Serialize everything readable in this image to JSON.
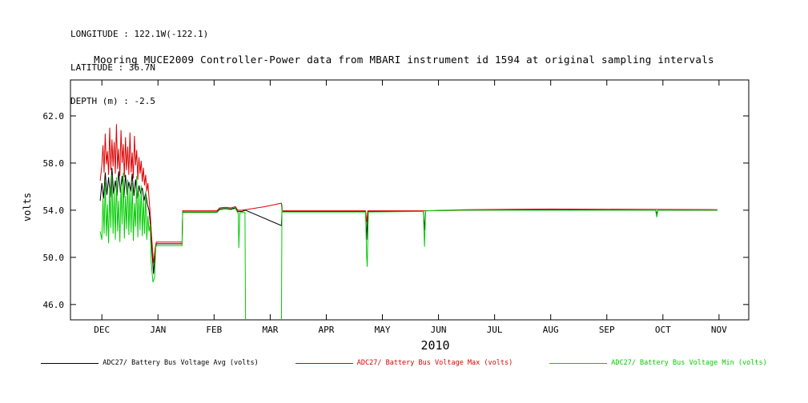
{
  "header": {
    "longitude": "LONGITUDE : 122.1W(-122.1)",
    "latitude": "LATITUDE : 36.7N",
    "depth": "DEPTH (m) : -2.5"
  },
  "chart_data": {
    "type": "line",
    "title": "Mooring MUCE2009 Controller-Power data from MBARI instrument id 1594 at original sampling intervals",
    "xlabel": "2010",
    "ylabel": "volts",
    "x_unit": "months, 0 = DEC 2009",
    "xlim": [
      -0.56,
      11.53
    ],
    "ylim": [
      44.7,
      65.05
    ],
    "grid": false,
    "legend_position": "bottom",
    "x_ticks": {
      "values": [
        0,
        1,
        2,
        3,
        4,
        5,
        6,
        7,
        8,
        9,
        10,
        11
      ],
      "labels": [
        "DEC",
        "JAN",
        "FEB",
        "MAR",
        "APR",
        "MAY",
        "JUN",
        "JUL",
        "AUG",
        "SEP",
        "OCT",
        "NOV"
      ]
    },
    "y_ticks": {
      "values": [
        46,
        50,
        54,
        58,
        62
      ],
      "labels": [
        "46.0",
        "50.0",
        "54.0",
        "58.0",
        "62.0"
      ]
    },
    "series": [
      {
        "name": "ADC27/ Battery Bus Voltage Avg (volts)",
        "color": "#000000",
        "points": [
          [
            -0.03,
            54.8
          ],
          [
            0.0,
            56.3
          ],
          [
            0.03,
            55.0
          ],
          [
            0.06,
            57.2
          ],
          [
            0.09,
            55.3
          ],
          [
            0.12,
            56.8
          ],
          [
            0.15,
            55.1
          ],
          [
            0.18,
            57.6
          ],
          [
            0.21,
            55.4
          ],
          [
            0.24,
            56.5
          ],
          [
            0.27,
            55.2
          ],
          [
            0.3,
            57.3
          ],
          [
            0.33,
            55.5
          ],
          [
            0.36,
            56.9
          ],
          [
            0.39,
            55.0
          ],
          [
            0.42,
            57.0
          ],
          [
            0.45,
            55.3
          ],
          [
            0.48,
            56.4
          ],
          [
            0.51,
            55.6
          ],
          [
            0.54,
            57.1
          ],
          [
            0.57,
            55.2
          ],
          [
            0.6,
            56.6
          ],
          [
            0.63,
            55.0
          ],
          [
            0.66,
            56.1
          ],
          [
            0.69,
            55.4
          ],
          [
            0.72,
            55.9
          ],
          [
            0.75,
            54.8
          ],
          [
            0.78,
            55.5
          ],
          [
            0.81,
            54.5
          ],
          [
            0.84,
            54.0
          ],
          [
            0.86,
            53.0
          ],
          [
            0.89,
            50.8
          ],
          [
            0.92,
            48.6
          ],
          [
            0.95,
            50.5
          ],
          [
            0.97,
            51.15
          ],
          [
            1.43,
            51.15
          ],
          [
            1.44,
            53.85
          ],
          [
            2.05,
            53.85
          ],
          [
            2.1,
            54.1
          ],
          [
            2.2,
            54.15
          ],
          [
            2.3,
            54.1
          ],
          [
            2.38,
            54.2
          ],
          [
            2.42,
            53.9
          ],
          [
            2.5,
            53.9
          ],
          [
            2.56,
            54.0
          ],
          [
            3.2,
            52.7
          ],
          [
            3.21,
            53.9
          ],
          [
            4.7,
            53.9
          ],
          [
            4.72,
            51.5
          ],
          [
            4.74,
            53.9
          ],
          [
            5.73,
            53.9
          ],
          [
            5.75,
            52.3
          ],
          [
            5.77,
            53.95
          ],
          [
            6.5,
            54.0
          ],
          [
            8.0,
            54.05
          ],
          [
            9.87,
            54.0
          ],
          [
            9.89,
            53.7
          ],
          [
            9.91,
            54.0
          ],
          [
            10.97,
            54.0
          ]
        ]
      },
      {
        "name": "ADC27/ Battery Bus Voltage Max (volts)",
        "color": "#dd0000",
        "points": [
          [
            -0.03,
            56.5
          ],
          [
            0.0,
            57.8
          ],
          [
            0.02,
            59.5
          ],
          [
            0.04,
            57.2
          ],
          [
            0.06,
            60.5
          ],
          [
            0.08,
            57.9
          ],
          [
            0.1,
            59.0
          ],
          [
            0.12,
            57.0
          ],
          [
            0.14,
            61.0
          ],
          [
            0.16,
            57.4
          ],
          [
            0.18,
            60.0
          ],
          [
            0.2,
            57.7
          ],
          [
            0.22,
            59.8
          ],
          [
            0.24,
            57.1
          ],
          [
            0.26,
            61.3
          ],
          [
            0.28,
            57.5
          ],
          [
            0.3,
            59.2
          ],
          [
            0.32,
            56.9
          ],
          [
            0.34,
            60.8
          ],
          [
            0.36,
            58.0
          ],
          [
            0.38,
            59.6
          ],
          [
            0.4,
            56.8
          ],
          [
            0.42,
            60.2
          ],
          [
            0.44,
            57.4
          ],
          [
            0.46,
            59.4
          ],
          [
            0.48,
            57.0
          ],
          [
            0.5,
            60.6
          ],
          [
            0.52,
            57.2
          ],
          [
            0.54,
            58.9
          ],
          [
            0.56,
            56.7
          ],
          [
            0.58,
            60.3
          ],
          [
            0.6,
            57.8
          ],
          [
            0.62,
            59.1
          ],
          [
            0.64,
            56.6
          ],
          [
            0.66,
            58.5
          ],
          [
            0.68,
            57.1
          ],
          [
            0.7,
            58.2
          ],
          [
            0.72,
            56.4
          ],
          [
            0.74,
            57.6
          ],
          [
            0.76,
            56.1
          ],
          [
            0.78,
            57.0
          ],
          [
            0.8,
            55.6
          ],
          [
            0.82,
            56.3
          ],
          [
            0.84,
            55.0
          ],
          [
            0.86,
            53.8
          ],
          [
            0.89,
            51.5
          ],
          [
            0.92,
            49.5
          ],
          [
            0.95,
            50.8
          ],
          [
            0.97,
            51.3
          ],
          [
            1.43,
            51.3
          ],
          [
            1.44,
            53.95
          ],
          [
            2.05,
            53.95
          ],
          [
            2.1,
            54.2
          ],
          [
            2.2,
            54.25
          ],
          [
            2.3,
            54.2
          ],
          [
            2.38,
            54.3
          ],
          [
            2.42,
            54.0
          ],
          [
            2.5,
            54.0
          ],
          [
            2.56,
            54.05
          ],
          [
            2.9,
            54.3
          ],
          [
            3.2,
            54.6
          ],
          [
            3.21,
            53.95
          ],
          [
            4.7,
            53.95
          ],
          [
            4.72,
            53.0
          ],
          [
            4.74,
            53.95
          ],
          [
            5.73,
            53.95
          ],
          [
            5.77,
            53.95
          ],
          [
            6.5,
            54.05
          ],
          [
            8.0,
            54.1
          ],
          [
            10.97,
            54.05
          ]
        ]
      },
      {
        "name": "ADC27/ Battery Bus Voltage Min (volts)",
        "color": "#00cc00",
        "points": [
          [
            -0.03,
            52.2
          ],
          [
            0.0,
            51.5
          ],
          [
            0.02,
            55.0
          ],
          [
            0.04,
            52.0
          ],
          [
            0.06,
            56.5
          ],
          [
            0.08,
            51.8
          ],
          [
            0.1,
            54.5
          ],
          [
            0.12,
            51.2
          ],
          [
            0.14,
            56.0
          ],
          [
            0.16,
            52.5
          ],
          [
            0.18,
            57.0
          ],
          [
            0.2,
            52.0
          ],
          [
            0.22,
            55.5
          ],
          [
            0.24,
            51.5
          ],
          [
            0.26,
            56.8
          ],
          [
            0.28,
            52.2
          ],
          [
            0.3,
            54.8
          ],
          [
            0.32,
            51.3
          ],
          [
            0.34,
            56.2
          ],
          [
            0.36,
            52.8
          ],
          [
            0.38,
            57.2
          ],
          [
            0.4,
            51.6
          ],
          [
            0.42,
            55.2
          ],
          [
            0.44,
            52.4
          ],
          [
            0.46,
            56.6
          ],
          [
            0.48,
            51.9
          ],
          [
            0.5,
            55.8
          ],
          [
            0.52,
            52.1
          ],
          [
            0.54,
            56.3
          ],
          [
            0.56,
            51.4
          ],
          [
            0.58,
            54.6
          ],
          [
            0.6,
            52.6
          ],
          [
            0.62,
            56.9
          ],
          [
            0.64,
            51.7
          ],
          [
            0.66,
            55.4
          ],
          [
            0.68,
            52.3
          ],
          [
            0.7,
            56.1
          ],
          [
            0.72,
            51.8
          ],
          [
            0.74,
            54.9
          ],
          [
            0.76,
            52.0
          ],
          [
            0.78,
            55.6
          ],
          [
            0.8,
            51.5
          ],
          [
            0.82,
            53.5
          ],
          [
            0.84,
            52.2
          ],
          [
            0.86,
            52.8
          ],
          [
            0.88,
            49.5
          ],
          [
            0.91,
            47.9
          ],
          [
            0.94,
            48.3
          ],
          [
            0.96,
            50.9
          ],
          [
            0.97,
            51.0
          ],
          [
            1.43,
            51.0
          ],
          [
            1.44,
            53.8
          ],
          [
            2.05,
            53.8
          ],
          [
            2.1,
            54.05
          ],
          [
            2.2,
            54.1
          ],
          [
            2.3,
            54.05
          ],
          [
            2.38,
            54.15
          ],
          [
            2.42,
            53.8
          ],
          [
            2.43,
            53.8
          ],
          [
            2.44,
            50.8
          ],
          [
            2.46,
            53.8
          ],
          [
            2.55,
            53.8
          ],
          [
            2.56,
            44.9
          ],
          [
            2.57,
            44.0
          ],
          [
            3.2,
            44.0
          ],
          [
            3.21,
            54.5
          ],
          [
            3.22,
            53.85
          ],
          [
            4.7,
            53.85
          ],
          [
            4.72,
            50.0
          ],
          [
            4.73,
            49.2
          ],
          [
            4.75,
            53.85
          ],
          [
            5.73,
            53.9
          ],
          [
            5.75,
            50.9
          ],
          [
            5.77,
            53.95
          ],
          [
            6.5,
            54.0
          ],
          [
            8.0,
            54.0
          ],
          [
            9.87,
            54.0
          ],
          [
            9.89,
            53.4
          ],
          [
            9.91,
            54.0
          ],
          [
            10.97,
            54.0
          ]
        ]
      }
    ]
  }
}
